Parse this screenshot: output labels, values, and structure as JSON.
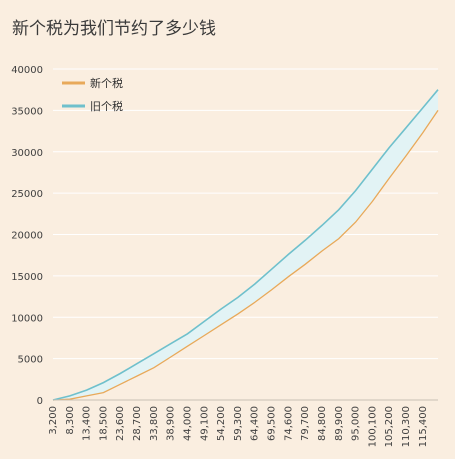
{
  "chart_data": {
    "type": "area",
    "title": "新个税为我们节约了多少钱",
    "xlabel": "",
    "ylabel": "",
    "ylim": [
      0,
      40000
    ],
    "yticks": [
      0,
      5000,
      10000,
      15000,
      20000,
      25000,
      30000,
      35000,
      40000
    ],
    "x_tick_labels": [
      "3,200",
      "8,300",
      "13,400",
      "18,500",
      "23,600",
      "28,700",
      "33,800",
      "38,900",
      "44,000",
      "49,100",
      "54,200",
      "59,300",
      "64,400",
      "69,500",
      "74,600",
      "79,700",
      "84,800",
      "89,900",
      "95,000",
      "100,100",
      "105,200",
      "110,300",
      "115,400"
    ],
    "x": [
      3200,
      8300,
      13400,
      18500,
      23600,
      28700,
      33800,
      38900,
      44000,
      49100,
      54200,
      59300,
      64400,
      69500,
      74600,
      79700,
      84800,
      89900,
      95000,
      100100,
      105200,
      110300,
      115400,
      120000
    ],
    "series": [
      {
        "name": "新个税",
        "color": "#e8a95a",
        "values": [
          0,
          100,
          500,
          900,
          1900,
          2900,
          3900,
          5200,
          6500,
          7800,
          9100,
          10400,
          11800,
          13300,
          14900,
          16400,
          18000,
          19500,
          21500,
          24000,
          26800,
          29500,
          32300,
          35000
        ]
      },
      {
        "name": "旧个税",
        "color": "#6fc0cc",
        "values": [
          0,
          500,
          1200,
          2100,
          3200,
          4400,
          5600,
          6800,
          8000,
          9500,
          11000,
          12400,
          14000,
          15800,
          17600,
          19300,
          21100,
          23000,
          25300,
          27900,
          30500,
          32900,
          35300,
          37500
        ]
      }
    ],
    "fill_between_color": "#e2f3f5",
    "legend_position": "top-left",
    "grid": true
  }
}
